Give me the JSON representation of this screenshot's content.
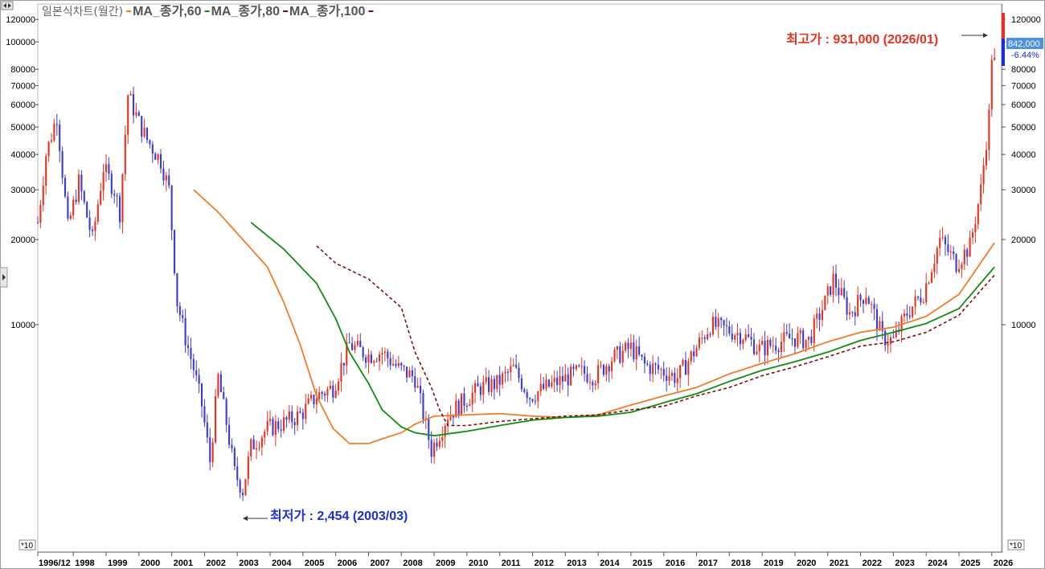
{
  "legend": {
    "title": "일본식차트(월간)",
    "items": [
      {
        "label": "MA_종가,60",
        "color": "#f07c2a",
        "dash": ""
      },
      {
        "label": "MA_종가,80",
        "color": "#118c11",
        "dash": ""
      },
      {
        "label": "MA_종가,100",
        "color": "#7a1010",
        "dash": "4,3"
      }
    ]
  },
  "annotations": {
    "high": {
      "label": "최고가 : 931,000 (2026/01)",
      "value": 931000,
      "date": "2026/01"
    },
    "low": {
      "label": "최저가 : 2,454 (2003/03)",
      "value": 2454,
      "date": "2003/03"
    }
  },
  "price_badge": {
    "last": "842,000",
    "change": "-6.44%"
  },
  "axis_multiplier": "*10",
  "colors": {
    "up": "#e8321e",
    "down": "#3a3ad6",
    "ma60": "#f07c2a",
    "ma80": "#118c11",
    "ma100": "#7a1010"
  },
  "chart_data": {
    "type": "candlestick",
    "y_scale": "log",
    "ylim": [
      2000,
      125000
    ],
    "y_ticks": [
      10000,
      20000,
      30000,
      40000,
      50000,
      60000,
      70000,
      80000,
      100000,
      120000
    ],
    "x_range": [
      "1996/12",
      "2026/03"
    ],
    "x_tick_labels": [
      "1996/12",
      "1998",
      "1999",
      "2000",
      "2001",
      "2002",
      "2003",
      "2004",
      "2005",
      "2006",
      "2007",
      "2008",
      "2009",
      "2010",
      "2011",
      "2012",
      "2013",
      "2014",
      "2015",
      "2016",
      "2017",
      "2018",
      "2019",
      "2020",
      "2021",
      "2022",
      "2023",
      "2024",
      "2025",
      "2026"
    ],
    "close_path": [
      [
        "1996/12",
        23000
      ],
      [
        "1997/03",
        40000
      ],
      [
        "1997/07",
        55000
      ],
      [
        "1997/11",
        22000
      ],
      [
        "1998/03",
        32000
      ],
      [
        "1998/08",
        20000
      ],
      [
        "1998/12",
        36000
      ],
      [
        "1999/04",
        30000
      ],
      [
        "1999/06",
        25000
      ],
      [
        "1999/09",
        65000
      ],
      [
        "2000/01",
        52000
      ],
      [
        "2000/04",
        45000
      ],
      [
        "2000/09",
        38000
      ],
      [
        "2000/12",
        30000
      ],
      [
        "2001/03",
        12000
      ],
      [
        "2001/06",
        9000
      ],
      [
        "2001/09",
        7000
      ],
      [
        "2001/12",
        5200
      ],
      [
        "2002/03",
        3300
      ],
      [
        "2002/06",
        6500
      ],
      [
        "2002/09",
        4500
      ],
      [
        "2002/12",
        3000
      ],
      [
        "2003/03",
        2600
      ],
      [
        "2003/06",
        3700
      ],
      [
        "2003/12",
        4300
      ],
      [
        "2004/06",
        4500
      ],
      [
        "2004/12",
        4800
      ],
      [
        "2005/06",
        5600
      ],
      [
        "2005/12",
        6000
      ],
      [
        "2006/06",
        8500
      ],
      [
        "2007/01",
        7800
      ],
      [
        "2007/06",
        8000
      ],
      [
        "2007/12",
        7000
      ],
      [
        "2008/06",
        6500
      ],
      [
        "2008/12",
        3600
      ],
      [
        "2009/06",
        4800
      ],
      [
        "2009/12",
        5400
      ],
      [
        "2010/06",
        6000
      ],
      [
        "2010/12",
        6200
      ],
      [
        "2011/06",
        7000
      ],
      [
        "2011/12",
        5600
      ],
      [
        "2012/06",
        6000
      ],
      [
        "2012/12",
        6400
      ],
      [
        "2013/06",
        6800
      ],
      [
        "2013/12",
        6600
      ],
      [
        "2014/06",
        7600
      ],
      [
        "2015/01",
        8300
      ],
      [
        "2015/06",
        7200
      ],
      [
        "2015/12",
        6900
      ],
      [
        "2016/06",
        6500
      ],
      [
        "2016/12",
        8000
      ],
      [
        "2017/06",
        10000
      ],
      [
        "2017/12",
        9600
      ],
      [
        "2018/06",
        9200
      ],
      [
        "2018/12",
        8200
      ],
      [
        "2019/06",
        8600
      ],
      [
        "2019/12",
        9000
      ],
      [
        "2020/06",
        8800
      ],
      [
        "2020/12",
        12000
      ],
      [
        "2021/03",
        14500
      ],
      [
        "2021/09",
        11000
      ],
      [
        "2022/03",
        13000
      ],
      [
        "2022/09",
        9000
      ],
      [
        "2023/01",
        8800
      ],
      [
        "2023/06",
        11000
      ],
      [
        "2023/12",
        13000
      ],
      [
        "2024/06",
        20000
      ],
      [
        "2024/12",
        16500
      ],
      [
        "2025/05",
        19000
      ],
      [
        "2025/09",
        30000
      ],
      [
        "2025/12",
        55000
      ],
      [
        "2026/01",
        90000
      ],
      [
        "2026/02",
        84200
      ]
    ],
    "series": [
      {
        "name": "MA_종가,60",
        "points": [
          [
            "2001/09",
            30000
          ],
          [
            "2002/06",
            25000
          ],
          [
            "2003/03",
            20000
          ],
          [
            "2003/12",
            16000
          ],
          [
            "2004/06",
            12000
          ],
          [
            "2004/12",
            8500
          ],
          [
            "2005/06",
            5600
          ],
          [
            "2005/12",
            4300
          ],
          [
            "2006/06",
            3800
          ],
          [
            "2007/01",
            3800
          ],
          [
            "2007/06",
            3950
          ],
          [
            "2008/01",
            4150
          ],
          [
            "2008/06",
            4450
          ],
          [
            "2009/01",
            4750
          ],
          [
            "2010/01",
            4800
          ],
          [
            "2011/01",
            4850
          ],
          [
            "2012/01",
            4750
          ],
          [
            "2013/01",
            4700
          ],
          [
            "2014/01",
            4800
          ],
          [
            "2015/01",
            5200
          ],
          [
            "2016/01",
            5600
          ],
          [
            "2017/01",
            6000
          ],
          [
            "2018/01",
            6700
          ],
          [
            "2019/01",
            7300
          ],
          [
            "2020/01",
            7900
          ],
          [
            "2021/01",
            8700
          ],
          [
            "2022/01",
            9400
          ],
          [
            "2023/01",
            9800
          ],
          [
            "2024/01",
            10700
          ],
          [
            "2025/01",
            12800
          ],
          [
            "2026/02",
            19500
          ]
        ]
      },
      {
        "name": "MA_종가,80",
        "points": [
          [
            "2003/06",
            23000
          ],
          [
            "2004/06",
            18500
          ],
          [
            "2005/06",
            14000
          ],
          [
            "2006/01",
            10500
          ],
          [
            "2006/06",
            8000
          ],
          [
            "2007/01",
            6200
          ],
          [
            "2007/06",
            5000
          ],
          [
            "2008/01",
            4350
          ],
          [
            "2008/06",
            4150
          ],
          [
            "2009/01",
            4050
          ],
          [
            "2010/01",
            4200
          ],
          [
            "2011/01",
            4400
          ],
          [
            "2012/01",
            4600
          ],
          [
            "2013/01",
            4700
          ],
          [
            "2014/01",
            4750
          ],
          [
            "2015/01",
            4900
          ],
          [
            "2016/01",
            5300
          ],
          [
            "2017/01",
            5700
          ],
          [
            "2018/01",
            6300
          ],
          [
            "2019/01",
            6900
          ],
          [
            "2020/01",
            7400
          ],
          [
            "2021/01",
            8000
          ],
          [
            "2022/01",
            8800
          ],
          [
            "2023/01",
            9400
          ],
          [
            "2024/01",
            10100
          ],
          [
            "2025/01",
            11400
          ],
          [
            "2026/02",
            16000
          ]
        ]
      },
      {
        "name": "MA_종가,100",
        "points": [
          [
            "2005/06",
            19000
          ],
          [
            "2006/01",
            16500
          ],
          [
            "2007/01",
            14500
          ],
          [
            "2008/01",
            11500
          ],
          [
            "2008/06",
            8000
          ],
          [
            "2008/12",
            6000
          ],
          [
            "2009/03",
            5000
          ],
          [
            "2009/06",
            4400
          ],
          [
            "2010/01",
            4400
          ],
          [
            "2011/01",
            4550
          ],
          [
            "2012/01",
            4650
          ],
          [
            "2013/01",
            4750
          ],
          [
            "2014/01",
            4800
          ],
          [
            "2015/01",
            5000
          ],
          [
            "2016/01",
            5150
          ],
          [
            "2017/01",
            5600
          ],
          [
            "2018/01",
            6000
          ],
          [
            "2019/01",
            6600
          ],
          [
            "2020/01",
            7100
          ],
          [
            "2021/01",
            7700
          ],
          [
            "2022/01",
            8400
          ],
          [
            "2023/01",
            8700
          ],
          [
            "2024/01",
            9400
          ],
          [
            "2025/01",
            10800
          ],
          [
            "2026/02",
            15000
          ]
        ]
      }
    ]
  }
}
